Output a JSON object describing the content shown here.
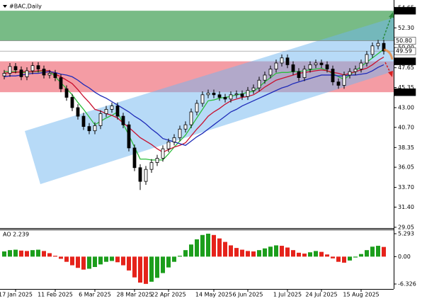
{
  "chart_data": [
    {
      "type": "candlestick",
      "title": "#BAC,Daily",
      "categories": [
        null,
        null,
        "17 Jan 2025",
        null,
        null,
        null,
        null,
        null,
        null,
        "11 Feb 2025",
        null,
        null,
        null,
        null,
        null,
        null,
        "6 Mar 2025",
        null,
        null,
        null,
        null,
        null,
        null,
        "28 Mar 2025",
        null,
        null,
        null,
        null,
        null,
        "22 Apr 2025",
        null,
        null,
        null,
        null,
        null,
        null,
        null,
        "14 May 2025",
        null,
        null,
        null,
        null,
        null,
        "6 Jun 2025",
        null,
        null,
        null,
        null,
        null,
        null,
        "1 Jul 2025",
        null,
        null,
        null,
        null,
        null,
        "24 Jul 2025",
        null,
        null,
        null,
        null,
        null,
        null,
        "15 Aug 2025",
        null,
        null,
        null,
        null
      ],
      "open": [
        46.7,
        47.0,
        47.8,
        47.4,
        46.6,
        47.3,
        47.9,
        47.5,
        46.8,
        47.0,
        46.5,
        45.2,
        44.2,
        43.0,
        42.0,
        40.8,
        40.3,
        40.9,
        42.3,
        42.8,
        43.2,
        42.0,
        41.0,
        38.3,
        36.0,
        34.4,
        35.8,
        36.6,
        37.1,
        38.2,
        39.0,
        39.5,
        40.5,
        41.0,
        42.5,
        43.5,
        44.5,
        44.7,
        44.5,
        44.2,
        44.0,
        44.5,
        44.6,
        44.3,
        45.0,
        45.3,
        46.2,
        46.8,
        47.5,
        48.2,
        48.8,
        48.0,
        47.2,
        46.5,
        47.5,
        48.0,
        48.2,
        48.0,
        47.5,
        46.0,
        45.6,
        46.8,
        47.2,
        47.5,
        48.2,
        49.2,
        50.2,
        50.5
      ],
      "high": [
        47.4,
        48.2,
        48.2,
        47.8,
        47.7,
        48.3,
        48.3,
        47.9,
        47.4,
        47.4,
        46.9,
        45.6,
        44.6,
        43.4,
        42.4,
        41.2,
        41.3,
        42.7,
        43.2,
        43.6,
        43.6,
        42.4,
        41.4,
        38.7,
        36.4,
        36.2,
        37.0,
        37.5,
        38.6,
        39.4,
        39.9,
        40.9,
        41.4,
        42.9,
        43.9,
        44.9,
        45.1,
        45.1,
        44.9,
        44.6,
        44.9,
        45.0,
        45.0,
        45.4,
        45.7,
        46.6,
        47.2,
        47.9,
        48.6,
        49.2,
        49.2,
        48.4,
        47.6,
        47.9,
        48.4,
        48.6,
        48.6,
        48.4,
        47.9,
        46.4,
        47.2,
        47.6,
        47.9,
        48.6,
        49.6,
        50.6,
        50.9,
        50.9
      ],
      "low": [
        46.3,
        46.6,
        47.0,
        46.2,
        46.2,
        46.9,
        47.1,
        46.4,
        46.4,
        46.1,
        44.8,
        43.8,
        42.6,
        41.6,
        40.4,
        39.9,
        39.9,
        40.5,
        41.9,
        42.4,
        41.6,
        40.6,
        37.9,
        35.6,
        33.4,
        34.0,
        35.4,
        36.2,
        36.7,
        37.8,
        38.6,
        39.1,
        40.1,
        40.6,
        42.1,
        43.1,
        44.1,
        44.1,
        43.8,
        43.6,
        43.6,
        44.1,
        43.9,
        43.9,
        44.6,
        44.9,
        45.8,
        46.4,
        47.1,
        47.8,
        47.6,
        46.8,
        46.1,
        46.1,
        47.1,
        47.6,
        47.6,
        47.1,
        45.6,
        45.2,
        45.2,
        46.4,
        46.8,
        47.1,
        47.8,
        48.8,
        49.8,
        49.19
      ],
      "close": [
        47.0,
        47.8,
        47.4,
        46.6,
        47.3,
        47.9,
        47.5,
        46.8,
        47.0,
        46.5,
        45.2,
        44.2,
        43.0,
        42.0,
        40.8,
        40.3,
        40.9,
        42.3,
        42.8,
        43.2,
        42.0,
        41.0,
        38.3,
        36.0,
        34.4,
        35.8,
        36.6,
        37.1,
        38.2,
        39.0,
        39.5,
        40.5,
        41.0,
        42.5,
        43.5,
        44.5,
        44.7,
        44.5,
        44.2,
        44.0,
        44.5,
        44.6,
        44.3,
        45.0,
        45.3,
        46.2,
        46.8,
        47.5,
        48.2,
        48.8,
        48.0,
        47.2,
        46.5,
        47.5,
        48.0,
        48.2,
        48.0,
        47.5,
        46.0,
        45.6,
        46.8,
        47.2,
        47.5,
        48.2,
        49.2,
        50.2,
        50.5,
        49.59
      ],
      "moving_averages": [
        {
          "color": "#2dbd3c",
          "values": [
            47.2,
            47.2,
            47.2,
            47.1,
            47.1,
            47.2,
            47.2,
            47.3,
            47.3,
            46.6,
            45.9,
            45.2,
            44.5,
            43.6,
            42.8,
            41.9,
            41.0,
            41.4,
            41.8,
            42.1,
            42.5,
            41.1,
            39.8,
            38.4,
            37.0,
            37.0,
            36.9,
            36.9,
            36.9,
            37.6,
            38.4,
            39.1,
            39.8,
            40.8,
            41.8,
            42.8,
            43.8,
            43.9,
            44.1,
            44.2,
            44.3,
            44.5,
            44.6,
            44.8,
            44.9,
            45.4,
            46.0,
            46.5,
            47.0,
            47.1,
            47.1,
            47.2,
            47.2,
            47.3,
            47.4,
            47.5,
            47.6,
            47.3,
            47.0,
            46.6,
            46.3,
            46.8,
            47.3,
            47.8,
            48.3,
            48.8,
            49.3,
            49.8
          ]
        },
        {
          "color": "#c8102e",
          "values": [
            47.0,
            47.1,
            47.1,
            47.2,
            47.2,
            47.2,
            47.3,
            47.3,
            47.3,
            46.9,
            46.6,
            46.2,
            45.8,
            45.1,
            44.3,
            43.6,
            42.8,
            42.6,
            42.3,
            42.1,
            41.8,
            41.2,
            40.7,
            40.1,
            39.5,
            39.1,
            38.7,
            38.2,
            37.8,
            38.1,
            38.4,
            38.6,
            38.9,
            39.7,
            40.5,
            41.2,
            42.0,
            42.5,
            42.9,
            43.4,
            43.8,
            44.0,
            44.2,
            44.3,
            44.5,
            44.9,
            45.4,
            45.8,
            46.2,
            46.4,
            46.6,
            46.8,
            47.0,
            47.1,
            47.2,
            47.3,
            47.4,
            47.3,
            47.1,
            47.0,
            46.8,
            47.0,
            47.2,
            47.4,
            47.6,
            48.0,
            48.5,
            48.9
          ]
        },
        {
          "color": "#1f2bb8",
          "values": [
            46.6,
            46.7,
            46.7,
            46.8,
            46.9,
            47.0,
            47.0,
            47.1,
            47.2,
            47.1,
            46.9,
            46.8,
            46.6,
            46.2,
            45.7,
            45.3,
            44.8,
            44.4,
            44.1,
            43.7,
            43.3,
            42.9,
            42.5,
            42.0,
            41.6,
            41.1,
            40.5,
            40.0,
            39.4,
            39.2,
            39.0,
            38.8,
            38.6,
            39.1,
            39.6,
            40.0,
            40.5,
            41.0,
            41.5,
            42.0,
            42.5,
            42.8,
            43.2,
            43.5,
            43.8,
            44.1,
            44.4,
            44.7,
            45.0,
            45.3,
            45.5,
            45.8,
            46.0,
            46.2,
            46.4,
            46.6,
            46.8,
            46.8,
            46.8,
            46.7,
            46.7,
            46.8,
            46.8,
            46.9,
            47.0,
            47.3,
            47.7,
            48.0
          ]
        }
      ],
      "ylim": [
        28.96,
        55.55
      ],
      "yticks": [
        29.05,
        {
          "value": 31.4,
          "label": "31.40"
        },
        {
          "value": 33.7,
          "label": "33.70"
        },
        36.05,
        38.35,
        {
          "value": 40.7,
          "label": "40.70"
        },
        {
          "value": 43,
          "label": "43.00"
        },
        45.35,
        47.65,
        {
          "value": 50,
          "label": "50.00"
        },
        {
          "value": 52.3,
          "label": "52.30"
        },
        54.65
      ],
      "zones": [
        {
          "from": 50.8,
          "to": 54.3,
          "color": "#3f9e52"
        },
        {
          "from": 44.8,
          "to": 48.4,
          "color": "#f0727d"
        }
      ],
      "levels": [
        {
          "value": 54.3,
          "label": "54.30",
          "color": "#000000"
        },
        {
          "value": 50.8,
          "label": "50.80",
          "color": "#ffffff"
        },
        {
          "value": 49.59,
          "label": "49.59",
          "color": "#ffffff"
        },
        {
          "value": 48.4,
          "label": "48.40",
          "color": "#000000"
        },
        {
          "value": 44.8,
          "label": "44.80",
          "color": "#000000"
        }
      ]
    },
    {
      "type": "bar",
      "title": "AO 2.239",
      "values": [
        1.2,
        1.5,
        1.6,
        1.4,
        1.3,
        1.5,
        1.6,
        1.3,
        0.8,
        0.2,
        -0.5,
        -1.2,
        -2.0,
        -2.6,
        -3.0,
        -2.8,
        -2.4,
        -1.8,
        -1.2,
        -1.0,
        -1.3,
        -2.0,
        -3.2,
        -4.8,
        -6.0,
        -6.3,
        -5.8,
        -4.9,
        -3.8,
        -2.5,
        -1.2,
        0.2,
        1.5,
        2.8,
        4.0,
        5.0,
        5.3,
        5.0,
        4.2,
        3.4,
        2.6,
        2.0,
        1.6,
        1.3,
        1.2,
        1.5,
        1.9,
        2.3,
        2.6,
        2.5,
        2.1,
        1.5,
        0.9,
        0.7,
        1.0,
        1.3,
        1.1,
        0.5,
        -0.4,
        -1.2,
        -1.4,
        -0.9,
        -0.2,
        0.6,
        1.5,
        2.3,
        2.5,
        2.239
      ],
      "up_color": "#1c9e1c",
      "down_color": "#e5231b",
      "ylim": [
        -7.47,
        6.11
      ],
      "yticks": [
        5.293,
        {
          "value": 0,
          "label": "0.00"
        },
        -6.326
      ]
    }
  ]
}
